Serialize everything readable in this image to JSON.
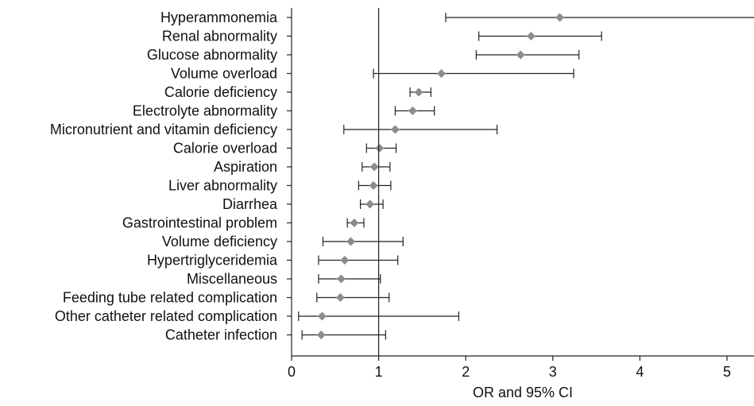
{
  "chart_data": {
    "type": "forest",
    "xlabel": "OR and 95% CI",
    "xlim": [
      0,
      5.4
    ],
    "xticks": [
      0,
      1,
      2,
      3,
      4,
      5
    ],
    "reference_line": 1,
    "marker_color": "#8c8c8c",
    "line_color": "#222222",
    "categories": [
      "Hyperammonemia",
      "Renal abnormality",
      "Glucose abnormality",
      "Volume overload",
      "Calorie deficiency",
      "Electrolyte abnormality",
      "Micronutrient and vitamin deficiency",
      "Calorie overload",
      "Aspiration",
      "Liver abnormality",
      "Diarrhea",
      "Gastrointestinal problem",
      "Volume deficiency",
      "Hypertriglyceridemia",
      "Miscellaneous",
      "Feeding tube related complication",
      "Other catheter related complication",
      "Catheter infection"
    ],
    "or": [
      3.08,
      2.75,
      2.63,
      1.72,
      1.46,
      1.39,
      1.19,
      1.01,
      0.95,
      0.94,
      0.9,
      0.72,
      0.68,
      0.61,
      0.57,
      0.56,
      0.35,
      0.34
    ],
    "lower": [
      1.77,
      2.15,
      2.12,
      0.94,
      1.36,
      1.19,
      0.6,
      0.86,
      0.81,
      0.77,
      0.79,
      0.64,
      0.36,
      0.31,
      0.31,
      0.29,
      0.08,
      0.12
    ],
    "upper": [
      5.4,
      3.56,
      3.3,
      3.24,
      1.6,
      1.64,
      2.36,
      1.2,
      1.13,
      1.14,
      1.05,
      0.83,
      1.28,
      1.22,
      1.02,
      1.12,
      1.92,
      1.08
    ]
  }
}
